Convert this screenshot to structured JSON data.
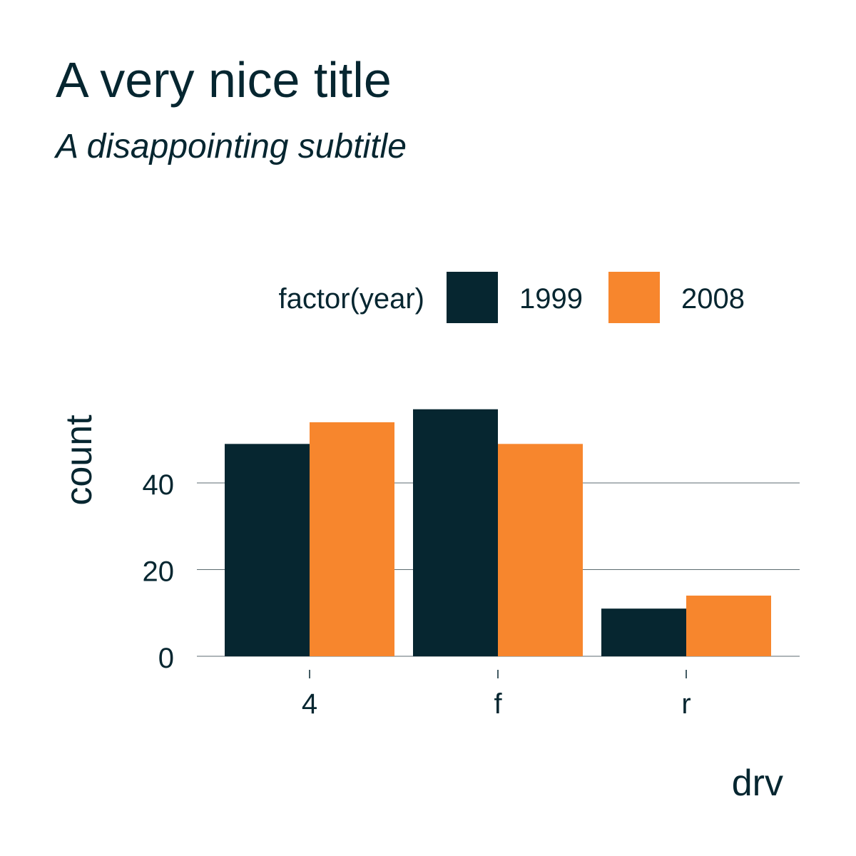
{
  "title": "A very nice title",
  "subtitle": "A disappointing subtitle",
  "legend": {
    "title": "factor(year)"
  },
  "colors": {
    "text": "#062630",
    "grid": "#5c6b70",
    "series_1999": "#062630",
    "series_2008": "#f7862d"
  },
  "chart_data": {
    "type": "bar",
    "title": "A very nice title",
    "subtitle": "A disappointing subtitle",
    "xlabel": "drv",
    "ylabel": "count",
    "categories": [
      "4",
      "f",
      "r"
    ],
    "series": [
      {
        "name": "1999",
        "values": [
          49,
          57,
          11
        ],
        "color": "#062630"
      },
      {
        "name": "2008",
        "values": [
          54,
          49,
          14
        ],
        "color": "#f7862d"
      }
    ],
    "ylim": [
      0,
      60
    ],
    "yticks": [
      0,
      20,
      40
    ],
    "grid": "horizontal major lines only",
    "legend_position": "top"
  }
}
